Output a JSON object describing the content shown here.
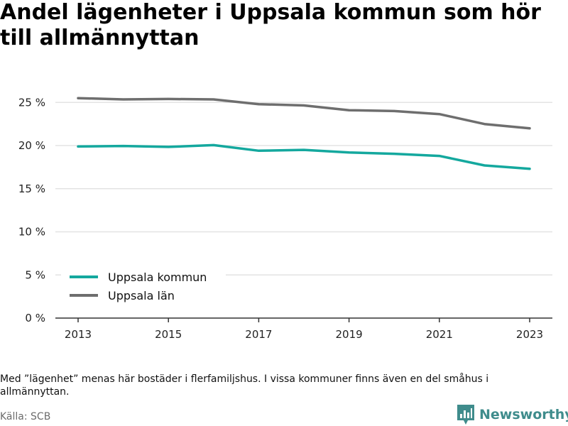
{
  "chart_data": {
    "type": "line",
    "title": "Andel lägenheter i Uppsala kommun som hör till allmännyttan",
    "x": [
      2013,
      2014,
      2015,
      2016,
      2017,
      2018,
      2019,
      2020,
      2021,
      2022,
      2023
    ],
    "x_tick_labels": [
      "2013",
      "2015",
      "2017",
      "2019",
      "2021",
      "2023"
    ],
    "y_tick_labels": [
      "0 %",
      "5 %",
      "10 %",
      "15 %",
      "20 %",
      "25 %"
    ],
    "ylim": [
      0,
      27
    ],
    "grid": true,
    "legend_position": "bottom-left",
    "series": [
      {
        "name": "Uppsala kommun",
        "color": "#14a89e",
        "values": [
          19.9,
          19.95,
          19.85,
          20.05,
          19.4,
          19.5,
          19.2,
          19.05,
          18.8,
          17.7,
          17.3
        ]
      },
      {
        "name": "Uppsala län",
        "color": "#6e6e6e",
        "values": [
          25.5,
          25.35,
          25.4,
          25.35,
          24.8,
          24.65,
          24.1,
          24.0,
          23.65,
          22.5,
          22.0
        ]
      }
    ]
  },
  "footer": {
    "note": "Med ”lägenhet” menas här bostäder i flerfamiljshus. I vissa kommuner finns även en del småhus i allmännyttan.",
    "source": "Källa: SCB",
    "brand": "Newsworthy",
    "brand_icon": "bar-chart-icon",
    "brand_color": "#3f8c8c"
  }
}
